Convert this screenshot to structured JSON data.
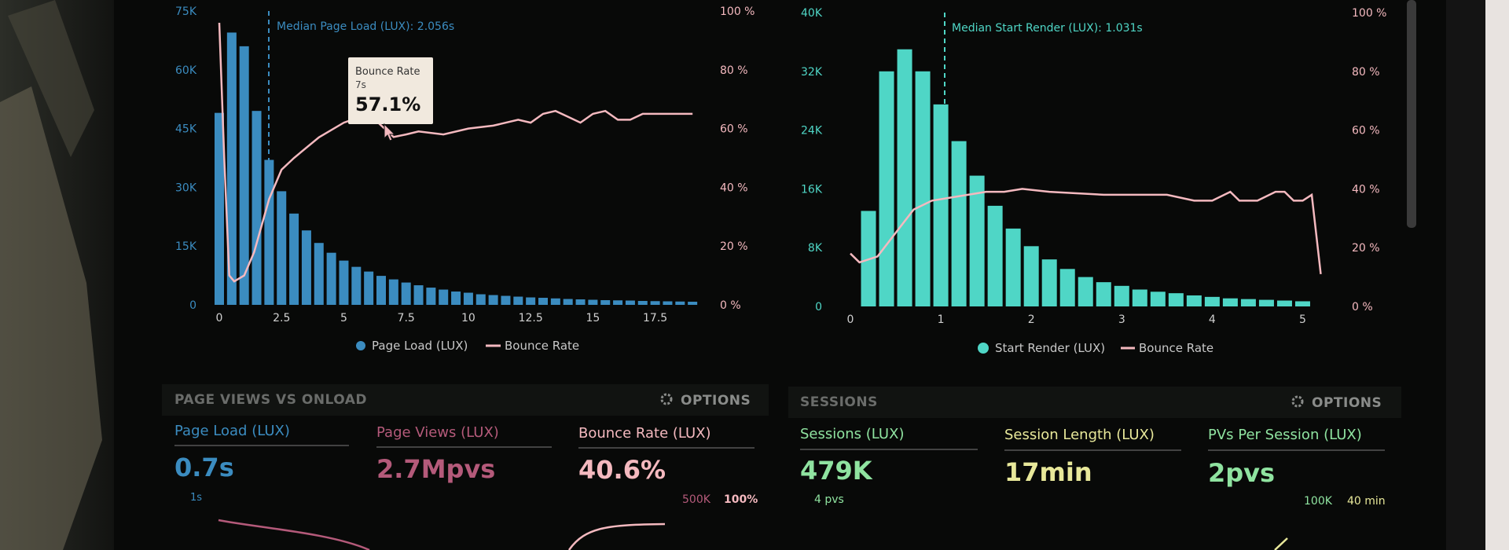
{
  "colors": {
    "blue": "#3b8cc0",
    "cyan": "#4fd6c6",
    "pink": "#f4b9bf",
    "maroon": "#b45a7a",
    "yellow": "#e8e89a",
    "green": "#8fe3a0",
    "axis": "#c8c8c8"
  },
  "left_chart": {
    "median_label": "Median Page Load (LUX): 2.056s",
    "tooltip": {
      "title": "Bounce Rate",
      "sub": "7s",
      "value": "57.1%"
    },
    "legend": [
      "Page Load (LUX)",
      "Bounce Rate"
    ]
  },
  "right_chart": {
    "median_label": "Median Start Render (LUX): 1.031s",
    "legend": [
      "Start Render (LUX)",
      "Bounce Rate"
    ]
  },
  "page_views_panel": {
    "title": "PAGE VIEWS VS ONLOAD",
    "options": "OPTIONS",
    "metrics": [
      {
        "label": "Page Load (LUX)",
        "value": "0.7s"
      },
      {
        "label": "Page Views (LUX)",
        "value": "2.7Mpvs"
      },
      {
        "label": "Bounce Rate (LUX)",
        "value": "40.6%"
      }
    ],
    "mini_labels": {
      "left": "1s",
      "mid": "500K",
      "right": "100%"
    }
  },
  "sessions_panel": {
    "title": "SESSIONS",
    "options": "OPTIONS",
    "metrics": [
      {
        "label": "Sessions (LUX)",
        "value": "479K"
      },
      {
        "label": "Session Length (LUX)",
        "value": "17min"
      },
      {
        "label": "PVs Per Session (LUX)",
        "value": "2pvs"
      }
    ],
    "mini_labels": {
      "left": "4 pvs",
      "mid": "100K",
      "right": "40 min"
    }
  },
  "chart_data": [
    {
      "type": "bar",
      "title": "",
      "series": [
        {
          "name": "Page Load (LUX)",
          "kind": "bar",
          "x": [
            0.0,
            0.5,
            1.0,
            1.5,
            2.0,
            2.5,
            3.0,
            3.5,
            4.0,
            4.5,
            5.0,
            5.5,
            6.0,
            6.5,
            7.0,
            7.5,
            8.0,
            8.5,
            9.0,
            9.5,
            10.0,
            10.5,
            11.0,
            11.5,
            12.0,
            12.5,
            13.0,
            13.5,
            14.0,
            14.5,
            15.0,
            15.5,
            16.0,
            16.5,
            17.0,
            17.5,
            18.0,
            18.5,
            19.0
          ],
          "values": [
            49000,
            69500,
            66000,
            49500,
            37000,
            29000,
            23300,
            19000,
            15800,
            13300,
            11300,
            9700,
            8500,
            7400,
            6500,
            5700,
            5000,
            4400,
            3900,
            3400,
            3100,
            2700,
            2500,
            2300,
            2100,
            1900,
            1800,
            1650,
            1500,
            1400,
            1300,
            1200,
            1150,
            1100,
            1000,
            950,
            900,
            850,
            800
          ]
        },
        {
          "name": "Bounce Rate",
          "kind": "line",
          "x": [
            0,
            0.2,
            0.4,
            0.6,
            1.0,
            1.4,
            2.0,
            2.5,
            3.0,
            4.0,
            5.0,
            6.0,
            7.0,
            7.5,
            8.0,
            9.0,
            10.0,
            11.0,
            12.0,
            12.5,
            13.0,
            13.5,
            14.0,
            14.5,
            15.0,
            15.5,
            16.0,
            16.5,
            17.0,
            18.0,
            19.0
          ],
          "values": [
            96,
            50,
            10,
            8,
            10,
            18,
            36,
            46,
            50,
            57,
            62,
            65,
            57.1,
            58,
            59,
            58,
            60,
            61,
            63,
            62,
            65,
            66,
            64,
            62,
            65,
            66,
            63,
            63,
            65,
            65,
            65
          ]
        }
      ],
      "x_ticks": [
        "0",
        "2.5",
        "5",
        "7.5",
        "10",
        "12.5",
        "15",
        "17.5"
      ],
      "y_left_ticks": [
        "0",
        "15K",
        "30K",
        "45K",
        "60K",
        "75K"
      ],
      "y_right_ticks": [
        "0 %",
        "20 %",
        "40 %",
        "60 %",
        "80 %",
        "100 %"
      ],
      "ylim_left": [
        0,
        75000
      ],
      "ylim_right": [
        0,
        100
      ],
      "xlim": [
        0,
        19.5
      ],
      "median": 2.056
    },
    {
      "type": "bar",
      "title": "",
      "series": [
        {
          "name": "Start Render (LUX)",
          "kind": "bar",
          "x": [
            0.2,
            0.4,
            0.6,
            0.8,
            1.0,
            1.2,
            1.4,
            1.6,
            1.8,
            2.0,
            2.2,
            2.4,
            2.6,
            2.8,
            3.0,
            3.2,
            3.4,
            3.6,
            3.8,
            4.0,
            4.2,
            4.4,
            4.6,
            4.8,
            5.0
          ],
          "values": [
            13000,
            32000,
            35000,
            32000,
            27500,
            22500,
            17800,
            13700,
            10600,
            8200,
            6400,
            5100,
            4000,
            3300,
            2800,
            2300,
            2000,
            1800,
            1500,
            1300,
            1100,
            1000,
            900,
            800,
            700
          ]
        },
        {
          "name": "Bounce Rate",
          "kind": "line",
          "x": [
            0.0,
            0.1,
            0.3,
            0.5,
            0.7,
            0.9,
            1.1,
            1.3,
            1.5,
            1.7,
            1.9,
            2.2,
            2.5,
            2.8,
            3.2,
            3.5,
            3.8,
            4.0,
            4.2,
            4.3,
            4.5,
            4.7,
            4.8,
            4.9,
            5.0,
            5.1,
            5.2
          ],
          "values": [
            18,
            15,
            17,
            25,
            33,
            36,
            37,
            38,
            39,
            39,
            40,
            39,
            38.5,
            38,
            38,
            38,
            36,
            36,
            39,
            36,
            36,
            39,
            39,
            36,
            36,
            38,
            11
          ]
        }
      ],
      "x_ticks": [
        "0",
        "1",
        "2",
        "3",
        "4",
        "5"
      ],
      "y_left_ticks": [
        "0",
        "8K",
        "16K",
        "24K",
        "32K",
        "40K"
      ],
      "y_right_ticks": [
        "0 %",
        "20 %",
        "40 %",
        "60 %",
        "80 %",
        "100 %"
      ],
      "ylim_left": [
        0,
        40000
      ],
      "ylim_right": [
        0,
        100
      ],
      "xlim": [
        0,
        5.3
      ],
      "median": 1.031
    }
  ]
}
